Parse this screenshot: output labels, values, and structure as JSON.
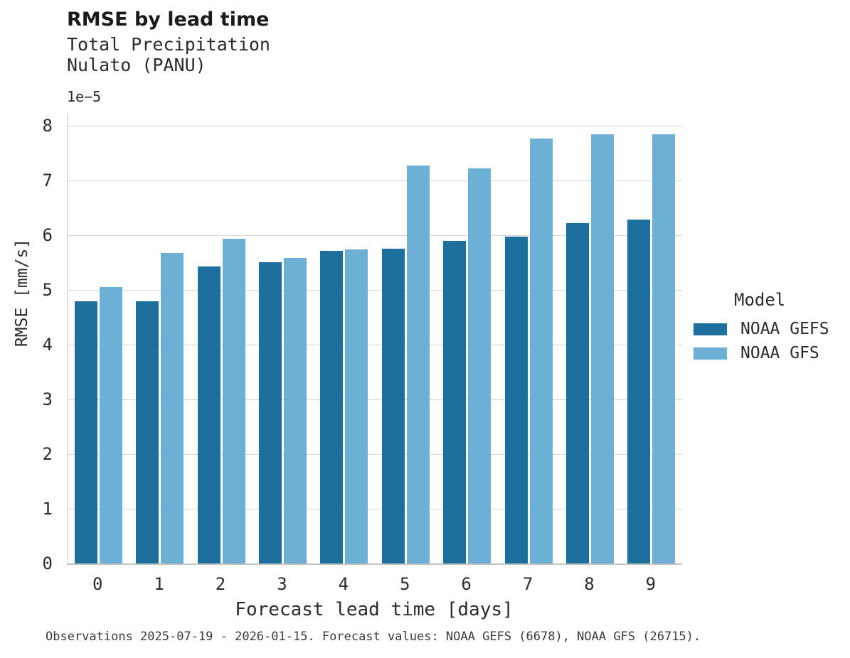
{
  "header": {
    "title": "RMSE by lead time",
    "subtitle_line1": "Total Precipitation",
    "subtitle_line2": "Nulato (PANU)"
  },
  "chart_data": {
    "type": "bar",
    "title": "RMSE by lead time",
    "subtitle": [
      "Total Precipitation",
      "Nulato (PANU)"
    ],
    "categories": [
      0,
      1,
      2,
      3,
      4,
      5,
      6,
      7,
      8,
      9
    ],
    "series": [
      {
        "name": "NOAA GEFS",
        "color": "#1d6f9e",
        "values": [
          4.79,
          4.79,
          5.43,
          5.51,
          5.71,
          5.75,
          5.9,
          5.97,
          6.22,
          6.28
        ]
      },
      {
        "name": "NOAA GFS",
        "color": "#6cb0d6",
        "values": [
          5.05,
          5.67,
          5.94,
          5.59,
          5.74,
          7.27,
          7.22,
          7.76,
          7.85,
          7.84
        ]
      }
    ],
    "value_unit_note": "values are in units of 1e-5 mm/s",
    "offset_label": "1e−5",
    "xlabel": "Forecast lead time [days]",
    "ylabel": "RMSE [mm/s]",
    "yticks": [
      0,
      1,
      2,
      3,
      4,
      5,
      6,
      7,
      8
    ],
    "ylim": [
      0,
      8.2
    ],
    "grid": "horizontal",
    "legend_position": "right",
    "gridline_color": "#d6d6d6",
    "spine_color": "#c9c9c9"
  },
  "legend": {
    "title": "Model"
  },
  "footer": {
    "text": "Observations 2025-07-19 - 2026-01-15. Forecast values: NOAA GEFS (6678), NOAA GFS (26715)."
  }
}
